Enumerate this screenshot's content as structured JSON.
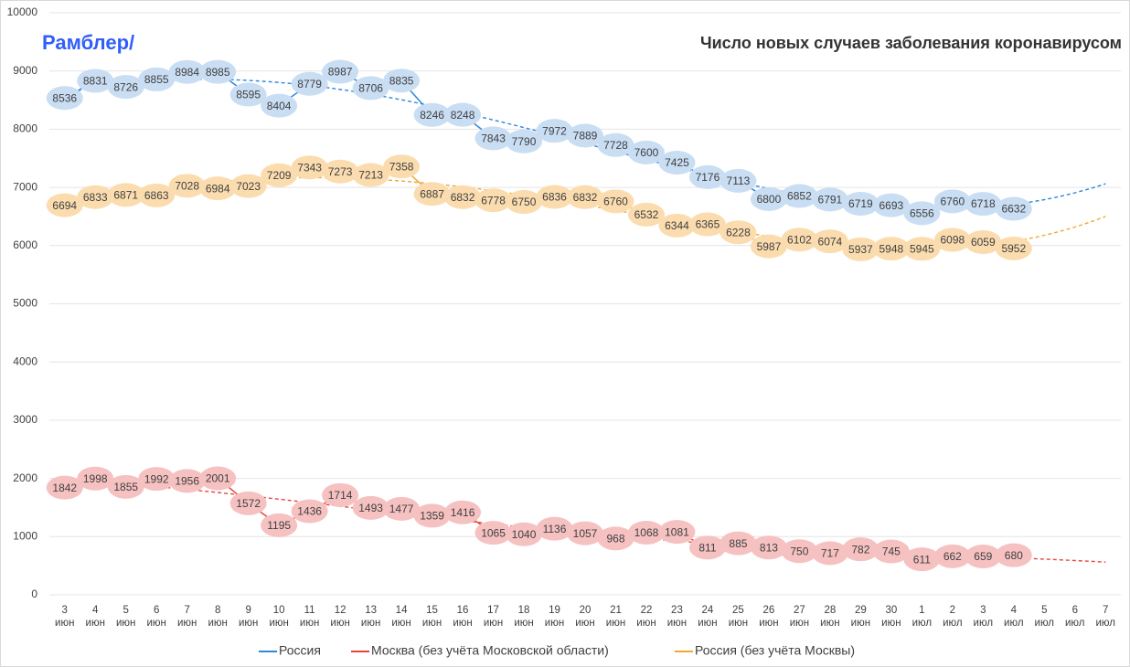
{
  "chart_data": {
    "type": "line",
    "title": "Число новых случаев заболевания коронавирусом",
    "logo": "Рамблер/",
    "categories": [
      "3 июн",
      "4 июн",
      "5 июн",
      "6 июн",
      "7 июн",
      "8 июн",
      "9 июн",
      "10 июн",
      "11 июн",
      "12 июн",
      "13 июн",
      "14 июн",
      "15 июн",
      "16 июн",
      "17 июн",
      "18 июн",
      "19 июн",
      "20 июн",
      "21 июн",
      "22 июн",
      "23 июн",
      "24 июн",
      "25 июн",
      "26 июн",
      "27 июн",
      "28 июн",
      "29 июн",
      "30 июн",
      "1 июл",
      "2 июл",
      "3 июл",
      "4 июл",
      "5 июл",
      "6 июл",
      "7 июл"
    ],
    "series": [
      {
        "name": "Россия",
        "color": "#2e86de",
        "bubble": "#c9ddf3",
        "values": [
          8536,
          8831,
          8726,
          8855,
          8984,
          8985,
          8595,
          8404,
          8779,
          8987,
          8706,
          8835,
          8246,
          8248,
          7843,
          7790,
          7972,
          7889,
          7728,
          7600,
          7425,
          7176,
          7113,
          6800,
          6852,
          6791,
          6719,
          6693,
          6556,
          6760,
          6718,
          6632,
          null,
          null,
          null
        ]
      },
      {
        "name": "Москва (без учёта Московской области)",
        "color": "#e8453c",
        "bubble": "#f6c1c1",
        "values": [
          1842,
          1998,
          1855,
          1992,
          1956,
          2001,
          1572,
          1195,
          1436,
          1714,
          1493,
          1477,
          1359,
          1416,
          1065,
          1040,
          1136,
          1057,
          968,
          1068,
          1081,
          811,
          885,
          813,
          750,
          717,
          782,
          745,
          611,
          662,
          659,
          680,
          null,
          null,
          null
        ]
      },
      {
        "name": "Россия (без учёта Москвы)",
        "color": "#f0a830",
        "bubble": "#fbdcae",
        "values": [
          6694,
          6833,
          6871,
          6863,
          7028,
          6984,
          7023,
          7209,
          7343,
          7273,
          7213,
          7358,
          6887,
          6832,
          6778,
          6750,
          6836,
          6832,
          6760,
          6532,
          6344,
          6365,
          6228,
          5987,
          6102,
          6074,
          5937,
          5948,
          5945,
          6098,
          6059,
          5952,
          null,
          null,
          null
        ]
      }
    ],
    "ylim": [
      0,
      10000
    ],
    "yticks": [
      0,
      1000,
      2000,
      3000,
      4000,
      5000,
      6000,
      7000,
      8000,
      9000,
      10000
    ],
    "grid": true,
    "trendline": true,
    "legend": "bottom"
  }
}
